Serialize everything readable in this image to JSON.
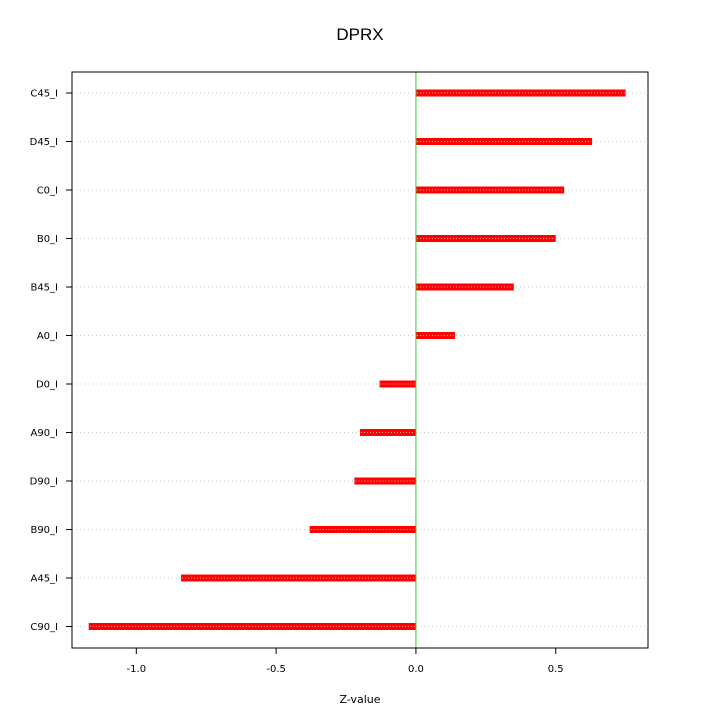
{
  "chart_data": {
    "type": "bar",
    "orientation": "horizontal",
    "title": "DPRX",
    "xlabel": "Z-value",
    "ylabel": "",
    "xlim": [
      -1.23,
      0.83
    ],
    "xticks": [
      -1.0,
      -0.5,
      0.0,
      0.5
    ],
    "xtick_labels": [
      "-1.0",
      "-0.5",
      "0.0",
      "0.5"
    ],
    "categories": [
      "C45_I",
      "D45_I",
      "C0_I",
      "B0_I",
      "B45_I",
      "A0_I",
      "D0_I",
      "A90_I",
      "D90_I",
      "B90_I",
      "A45_I",
      "C90_I"
    ],
    "values": [
      0.75,
      0.63,
      0.53,
      0.5,
      0.35,
      0.14,
      -0.13,
      -0.2,
      -0.22,
      -0.38,
      -0.84,
      -1.17
    ],
    "grid": "horizontal-dotted",
    "reference_line": 0.0,
    "colors": {
      "bar": "#ff0000",
      "reference_line": "#33cc33",
      "grid": "#c8c8c8"
    }
  }
}
